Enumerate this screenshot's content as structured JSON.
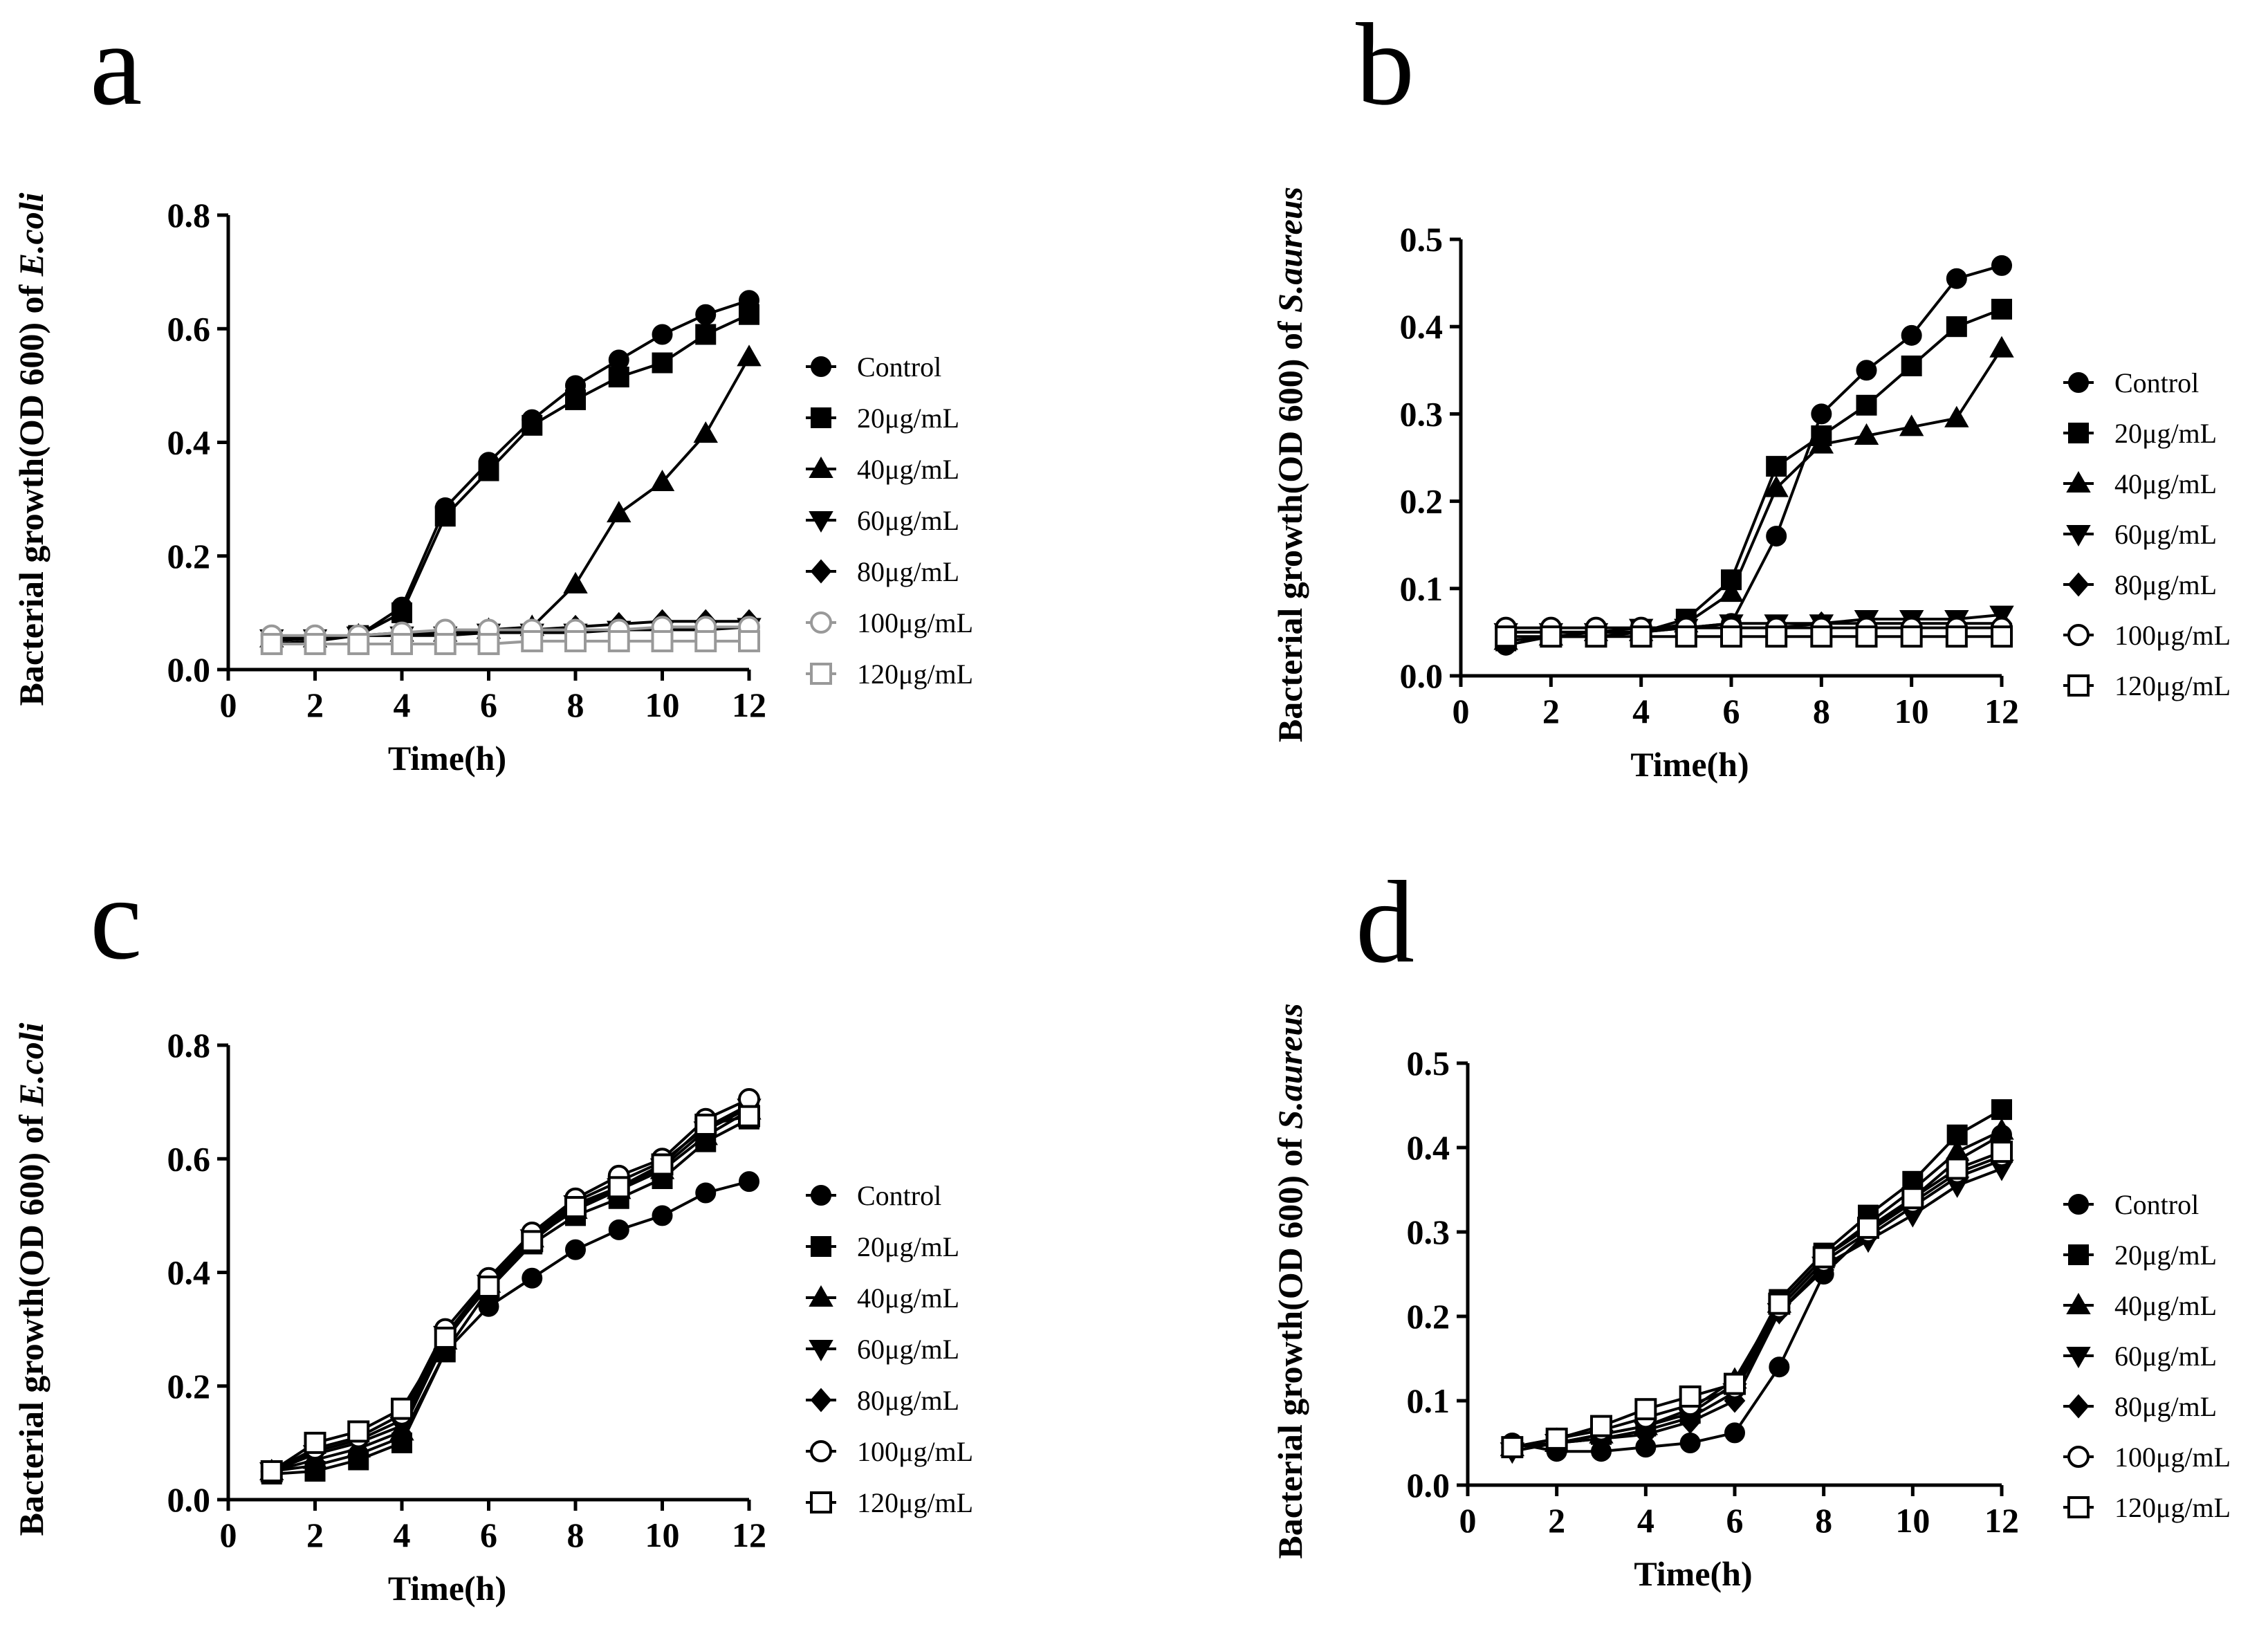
{
  "chart_data": [
    {
      "type": "line",
      "panel_label": "a",
      "organism": "E.coli",
      "ylabel_prefix": "Bacterial growth(OD 600) of ",
      "xlabel": "Time(h)",
      "xlim": [
        0,
        12
      ],
      "ylim": [
        0,
        0.8
      ],
      "xticks": [
        0,
        2,
        4,
        6,
        8,
        10,
        12
      ],
      "xtick_labels": [
        "0",
        "2",
        "4",
        "6",
        "8",
        "10",
        "12"
      ],
      "yticks": [
        0.0,
        0.2,
        0.4,
        0.6,
        0.8
      ],
      "ytick_labels": [
        "0.0",
        "0.2",
        "0.4",
        "0.6",
        "0.8"
      ],
      "legend_position": "right",
      "x": [
        1,
        2,
        3,
        4,
        5,
        6,
        7,
        8,
        9,
        10,
        11,
        12
      ],
      "series": [
        {
          "name": "Control",
          "marker": "circle",
          "filled": true,
          "color": "#000000",
          "values": [
            0.05,
            0.055,
            0.06,
            0.11,
            0.285,
            0.365,
            0.44,
            0.5,
            0.545,
            0.59,
            0.625,
            0.65
          ]
        },
        {
          "name": "20μg/mL",
          "marker": "square",
          "filled": true,
          "color": "#000000",
          "values": [
            0.045,
            0.05,
            0.06,
            0.1,
            0.27,
            0.35,
            0.43,
            0.475,
            0.515,
            0.54,
            0.59,
            0.625
          ]
        },
        {
          "name": "40μg/mL",
          "marker": "triangle-up",
          "filled": true,
          "color": "#000000",
          "values": [
            0.055,
            0.055,
            0.06,
            0.065,
            0.065,
            0.07,
            0.075,
            0.15,
            0.275,
            0.33,
            0.415,
            0.55
          ]
        },
        {
          "name": "60μg/mL",
          "marker": "triangle-down",
          "filled": true,
          "color": "#000000",
          "values": [
            0.055,
            0.055,
            0.06,
            0.06,
            0.06,
            0.065,
            0.065,
            0.065,
            0.07,
            0.07,
            0.07,
            0.075
          ]
        },
        {
          "name": "80μg/mL",
          "marker": "diamond",
          "filled": true,
          "color": "#000000",
          "values": [
            0.055,
            0.055,
            0.06,
            0.06,
            0.065,
            0.065,
            0.07,
            0.075,
            0.08,
            0.085,
            0.085,
            0.085
          ]
        },
        {
          "name": "100μg/mL",
          "marker": "circle",
          "filled": false,
          "color": "#999999",
          "values": [
            0.06,
            0.06,
            0.06,
            0.065,
            0.07,
            0.07,
            0.07,
            0.07,
            0.07,
            0.075,
            0.075,
            0.075
          ]
        },
        {
          "name": "120μg/mL",
          "marker": "square",
          "filled": false,
          "color": "#999999",
          "values": [
            0.045,
            0.045,
            0.045,
            0.045,
            0.045,
            0.045,
            0.05,
            0.05,
            0.05,
            0.05,
            0.05,
            0.05
          ]
        }
      ]
    },
    {
      "type": "line",
      "panel_label": "b",
      "organism": "S.aureus",
      "ylabel_prefix": "Bacterial growth(OD 600) of ",
      "xlabel": "Time(h)",
      "xlim": [
        0,
        12
      ],
      "ylim": [
        0,
        0.5
      ],
      "xticks": [
        0,
        2,
        4,
        6,
        8,
        10,
        12
      ],
      "xtick_labels": [
        "0",
        "2",
        "4",
        "6",
        "8",
        "10",
        "12"
      ],
      "yticks": [
        0.0,
        0.1,
        0.2,
        0.3,
        0.4,
        0.5
      ],
      "ytick_labels": [
        "0.0",
        "0.1",
        "0.2",
        "0.3",
        "0.4",
        "0.5"
      ],
      "legend_position": "right",
      "x": [
        1,
        2,
        3,
        4,
        5,
        6,
        7,
        8,
        9,
        10,
        11,
        12
      ],
      "series": [
        {
          "name": "Control",
          "marker": "circle",
          "filled": true,
          "color": "#000000",
          "values": [
            0.035,
            0.045,
            0.045,
            0.05,
            0.055,
            0.06,
            0.16,
            0.3,
            0.35,
            0.39,
            0.455,
            0.47
          ]
        },
        {
          "name": "20μg/mL",
          "marker": "square",
          "filled": true,
          "color": "#000000",
          "values": [
            0.04,
            0.045,
            0.045,
            0.05,
            0.065,
            0.11,
            0.24,
            0.275,
            0.31,
            0.355,
            0.4,
            0.42
          ]
        },
        {
          "name": "40μg/mL",
          "marker": "triangle-up",
          "filled": true,
          "color": "#000000",
          "values": [
            0.04,
            0.045,
            0.05,
            0.05,
            0.06,
            0.095,
            0.215,
            0.265,
            0.275,
            0.285,
            0.295,
            0.375
          ]
        },
        {
          "name": "60μg/mL",
          "marker": "triangle-down",
          "filled": true,
          "color": "#000000",
          "values": [
            0.05,
            0.05,
            0.05,
            0.055,
            0.055,
            0.06,
            0.06,
            0.06,
            0.065,
            0.065,
            0.065,
            0.07
          ]
        },
        {
          "name": "80μg/mL",
          "marker": "diamond",
          "filled": true,
          "color": "#000000",
          "values": [
            0.05,
            0.05,
            0.05,
            0.05,
            0.055,
            0.055,
            0.055,
            0.06,
            0.06,
            0.06,
            0.06,
            0.06
          ]
        },
        {
          "name": "100μg/mL",
          "marker": "circle",
          "filled": false,
          "color": "#000000",
          "values": [
            0.055,
            0.055,
            0.055,
            0.055,
            0.055,
            0.055,
            0.055,
            0.055,
            0.055,
            0.055,
            0.055,
            0.055
          ]
        },
        {
          "name": "120μg/mL",
          "marker": "square",
          "filled": false,
          "color": "#000000",
          "values": [
            0.045,
            0.045,
            0.045,
            0.045,
            0.045,
            0.045,
            0.045,
            0.045,
            0.045,
            0.045,
            0.045,
            0.045
          ]
        }
      ]
    },
    {
      "type": "line",
      "panel_label": "c",
      "organism": "E.coli",
      "ylabel_prefix": "Bacterial growth(OD 600) of ",
      "xlabel": "Time(h)",
      "xlim": [
        0,
        12
      ],
      "ylim": [
        0,
        0.8
      ],
      "xticks": [
        0,
        2,
        4,
        6,
        8,
        10,
        12
      ],
      "xtick_labels": [
        "0",
        "2",
        "4",
        "6",
        "8",
        "10",
        "12"
      ],
      "yticks": [
        0.0,
        0.2,
        0.4,
        0.6,
        0.8
      ],
      "ytick_labels": [
        "0.0",
        "0.2",
        "0.4",
        "0.6",
        "0.8"
      ],
      "legend_position": "right",
      "x": [
        1,
        2,
        3,
        4,
        5,
        6,
        7,
        8,
        9,
        10,
        11,
        12
      ],
      "series": [
        {
          "name": "Control",
          "marker": "circle",
          "filled": true,
          "color": "#000000",
          "values": [
            0.05,
            0.06,
            0.08,
            0.11,
            0.26,
            0.34,
            0.39,
            0.44,
            0.475,
            0.5,
            0.54,
            0.56
          ]
        },
        {
          "name": "20μg/mL",
          "marker": "square",
          "filled": true,
          "color": "#000000",
          "values": [
            0.045,
            0.05,
            0.07,
            0.1,
            0.26,
            0.37,
            0.45,
            0.5,
            0.53,
            0.565,
            0.63,
            0.67
          ]
        },
        {
          "name": "40μg/mL",
          "marker": "triangle-up",
          "filled": true,
          "color": "#000000",
          "values": [
            0.05,
            0.07,
            0.09,
            0.12,
            0.28,
            0.38,
            0.46,
            0.51,
            0.545,
            0.58,
            0.64,
            0.685
          ]
        },
        {
          "name": "60μg/mL",
          "marker": "triangle-down",
          "filled": true,
          "color": "#000000",
          "values": [
            0.05,
            0.08,
            0.1,
            0.13,
            0.29,
            0.38,
            0.46,
            0.52,
            0.55,
            0.585,
            0.65,
            0.69
          ]
        },
        {
          "name": "80μg/mL",
          "marker": "diamond",
          "filled": true,
          "color": "#000000",
          "values": [
            0.05,
            0.085,
            0.105,
            0.14,
            0.29,
            0.385,
            0.465,
            0.525,
            0.56,
            0.595,
            0.655,
            0.695
          ]
        },
        {
          "name": "100μg/mL",
          "marker": "circle",
          "filled": false,
          "color": "#000000",
          "values": [
            0.05,
            0.09,
            0.11,
            0.15,
            0.3,
            0.39,
            0.47,
            0.53,
            0.57,
            0.6,
            0.67,
            0.705
          ]
        },
        {
          "name": "120μg/mL",
          "marker": "square",
          "filled": false,
          "color": "#000000",
          "values": [
            0.05,
            0.1,
            0.12,
            0.16,
            0.285,
            0.375,
            0.455,
            0.515,
            0.55,
            0.59,
            0.66,
            0.675
          ]
        }
      ]
    },
    {
      "type": "line",
      "panel_label": "d",
      "organism": "S.aureus",
      "ylabel_prefix": "Bacterial growth(OD 600) of ",
      "xlabel": "Time(h)",
      "xlim": [
        0,
        12
      ],
      "ylim": [
        0,
        0.5
      ],
      "xticks": [
        0,
        2,
        4,
        6,
        8,
        10,
        12
      ],
      "xtick_labels": [
        "0",
        "2",
        "4",
        "6",
        "8",
        "10",
        "12"
      ],
      "yticks": [
        0.0,
        0.1,
        0.2,
        0.3,
        0.4,
        0.5
      ],
      "ytick_labels": [
        "0.0",
        "0.1",
        "0.2",
        "0.3",
        "0.4",
        "0.5"
      ],
      "legend_position": "right",
      "x": [
        1,
        2,
        3,
        4,
        5,
        6,
        7,
        8,
        9,
        10,
        11,
        12
      ],
      "series": [
        {
          "name": "Control",
          "marker": "circle",
          "filled": true,
          "color": "#000000",
          "values": [
            0.05,
            0.04,
            0.04,
            0.045,
            0.05,
            0.062,
            0.14,
            0.25,
            0.3,
            0.34,
            0.385,
            0.415
          ]
        },
        {
          "name": "20μg/mL",
          "marker": "square",
          "filled": true,
          "color": "#000000",
          "values": [
            0.045,
            0.05,
            0.06,
            0.07,
            0.085,
            0.12,
            0.22,
            0.275,
            0.32,
            0.36,
            0.415,
            0.445
          ]
        },
        {
          "name": "40μg/mL",
          "marker": "triangle-up",
          "filled": true,
          "color": "#000000",
          "values": [
            0.045,
            0.05,
            0.06,
            0.07,
            0.09,
            0.125,
            0.215,
            0.27,
            0.31,
            0.35,
            0.395,
            0.42
          ]
        },
        {
          "name": "60μg/mL",
          "marker": "triangle-down",
          "filled": true,
          "color": "#000000",
          "values": [
            0.04,
            0.05,
            0.055,
            0.065,
            0.08,
            0.11,
            0.205,
            0.26,
            0.29,
            0.32,
            0.355,
            0.375
          ]
        },
        {
          "name": "80μg/mL",
          "marker": "diamond",
          "filled": true,
          "color": "#000000",
          "values": [
            0.045,
            0.05,
            0.055,
            0.06,
            0.075,
            0.1,
            0.205,
            0.255,
            0.295,
            0.33,
            0.365,
            0.385
          ]
        },
        {
          "name": "100μg/mL",
          "marker": "circle",
          "filled": false,
          "color": "#000000",
          "values": [
            0.045,
            0.055,
            0.065,
            0.08,
            0.095,
            0.115,
            0.21,
            0.265,
            0.3,
            0.335,
            0.37,
            0.39
          ]
        },
        {
          "name": "120μg/mL",
          "marker": "square",
          "filled": false,
          "color": "#000000",
          "values": [
            0.045,
            0.055,
            0.07,
            0.09,
            0.105,
            0.12,
            0.215,
            0.27,
            0.305,
            0.34,
            0.375,
            0.395
          ]
        }
      ]
    }
  ]
}
